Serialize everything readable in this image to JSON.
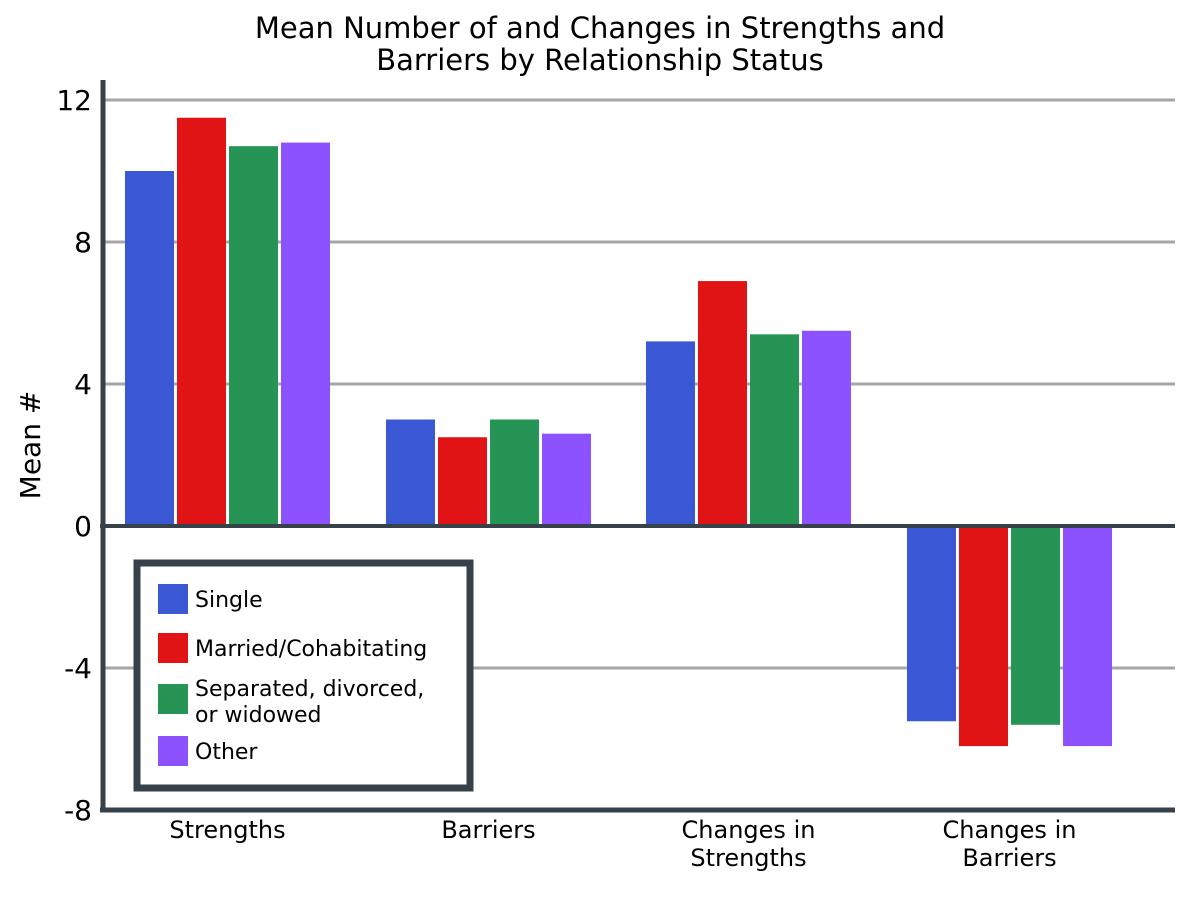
{
  "chart_data": {
    "type": "bar",
    "title": [
      "Mean Number of and Changes in Strengths and",
      "Barriers by Relationship Status"
    ],
    "xlabel": "",
    "ylabel": "Mean #",
    "ylim": [
      -8,
      12
    ],
    "yticks": [
      12,
      8,
      4,
      0,
      -4,
      -8
    ],
    "grid": true,
    "legend_position": "bottom-left",
    "categories": [
      [
        "Strengths"
      ],
      [
        "Barriers"
      ],
      [
        "Changes in",
        "Strengths"
      ],
      [
        "Changes in",
        "Barriers"
      ]
    ],
    "series": [
      {
        "name": "Single",
        "color": "#3a57d4",
        "values": [
          10.0,
          3.0,
          5.2,
          -5.5
        ]
      },
      {
        "name": "Married/Cohabitating",
        "color": "#e01414",
        "values": [
          11.5,
          2.5,
          6.9,
          -6.2
        ]
      },
      {
        "name": "Separated, divorced, or widowed",
        "color": "#259455",
        "values": [
          10.7,
          3.0,
          5.4,
          -5.6
        ]
      },
      {
        "name": "Other",
        "color": "#8c52ff",
        "values": [
          10.8,
          2.6,
          5.5,
          -6.2
        ]
      }
    ],
    "axis_color": "#36414a",
    "grid_color": "#a6a6a6"
  },
  "legend": {
    "entries": [
      {
        "series": 0,
        "lines": [
          "Single"
        ]
      },
      {
        "series": 1,
        "lines": [
          "Married/Cohabitating"
        ]
      },
      {
        "series": 2,
        "lines": [
          "Separated, divorced,",
          "or widowed"
        ]
      },
      {
        "series": 3,
        "lines": [
          "Other"
        ]
      }
    ]
  }
}
